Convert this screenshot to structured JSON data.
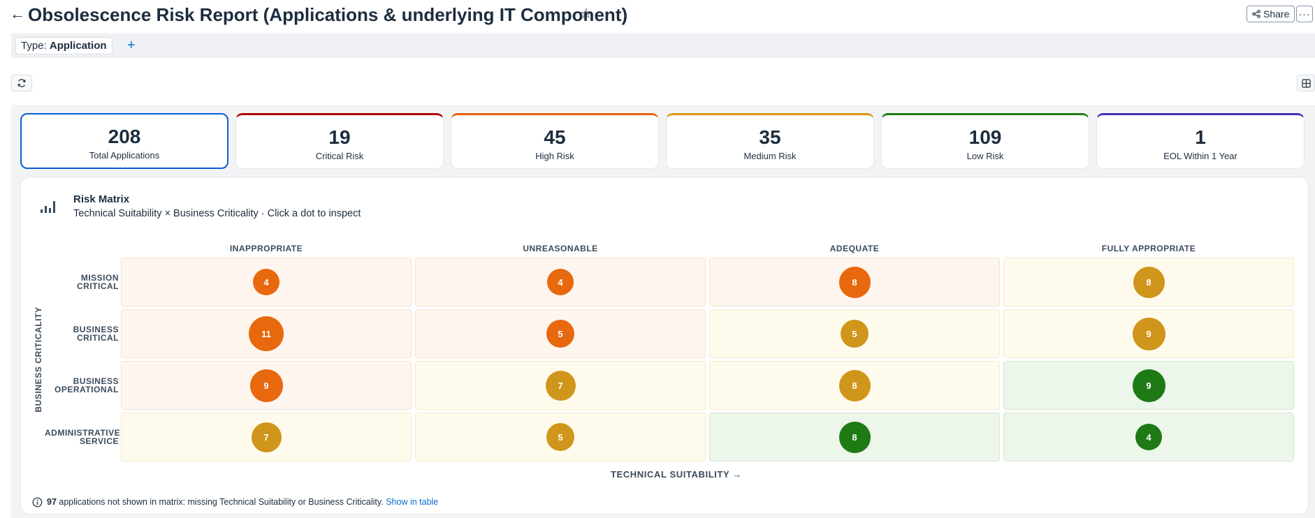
{
  "header": {
    "title": "Obsolescence Risk Report (Applications & underlying IT Component)",
    "back_icon": "←",
    "star_icon": "☆",
    "share_label": "Share",
    "more_icon": "···"
  },
  "filter": {
    "chip_key": "Type:",
    "chip_value": "Application",
    "add_icon": "+"
  },
  "kpis": [
    {
      "value": "208",
      "label": "Total Applications",
      "color": "#0a5ed4",
      "selected": true
    },
    {
      "value": "19",
      "label": "Critical Risk",
      "color": "#b00000"
    },
    {
      "value": "45",
      "label": "High Risk",
      "color": "#e5610c"
    },
    {
      "value": "35",
      "label": "Medium Risk",
      "color": "#d9950e"
    },
    {
      "value": "109",
      "label": "Low Risk",
      "color": "#1e7c0e"
    },
    {
      "value": "1",
      "label": "EOL Within 1 Year",
      "color": "#4a2fb3"
    }
  ],
  "matrix": {
    "title": "Risk Matrix",
    "subtitle": "Technical Suitability × Business Criticality · Click a dot to inspect",
    "x_axis_title": "TECHNICAL SUITABILITY →",
    "y_axis_title": "BUSINESS CRITICALITY",
    "columns": [
      "INAPPROPRIATE",
      "UNREASONABLE",
      "ADEQUATE",
      "FULLY APPROPRIATE"
    ],
    "rows": [
      {
        "label_1": "MISSION",
        "label_2": "CRITICAL",
        "cells": [
          {
            "count": "4",
            "risk": "high",
            "bg": "peach"
          },
          {
            "count": "4",
            "risk": "high",
            "bg": "peach"
          },
          {
            "count": "8",
            "risk": "high",
            "bg": "peach"
          },
          {
            "count": "8",
            "risk": "medium",
            "bg": "cream"
          }
        ]
      },
      {
        "label_1": "BUSINESS",
        "label_2": "CRITICAL",
        "cells": [
          {
            "count": "11",
            "risk": "high",
            "bg": "peach"
          },
          {
            "count": "5",
            "risk": "high",
            "bg": "peach"
          },
          {
            "count": "5",
            "risk": "medium",
            "bg": "cream"
          },
          {
            "count": "9",
            "risk": "medium",
            "bg": "cream"
          }
        ]
      },
      {
        "label_1": "BUSINESS",
        "label_2": "OPERATIONAL",
        "cells": [
          {
            "count": "9",
            "risk": "high",
            "bg": "peach"
          },
          {
            "count": "7",
            "risk": "medium",
            "bg": "cream"
          },
          {
            "count": "8",
            "risk": "medium",
            "bg": "cream"
          },
          {
            "count": "9",
            "risk": "low",
            "bg": "mint"
          }
        ]
      },
      {
        "label_1": "ADMINISTRATIVE",
        "label_2": "SERVICE",
        "cells": [
          {
            "count": "7",
            "risk": "medium",
            "bg": "cream"
          },
          {
            "count": "5",
            "risk": "medium",
            "bg": "cream"
          },
          {
            "count": "8",
            "risk": "low",
            "bg": "mint"
          },
          {
            "count": "4",
            "risk": "low",
            "bg": "mint"
          }
        ]
      }
    ],
    "risk_colors": {
      "high": "#e8680e",
      "medium": "#d0951b",
      "low": "#1d7a14"
    }
  },
  "footnote": {
    "count": "97",
    "text": "applications not shown in matrix: missing Technical Suitability or Business Criticality.",
    "link": "Show in table"
  }
}
